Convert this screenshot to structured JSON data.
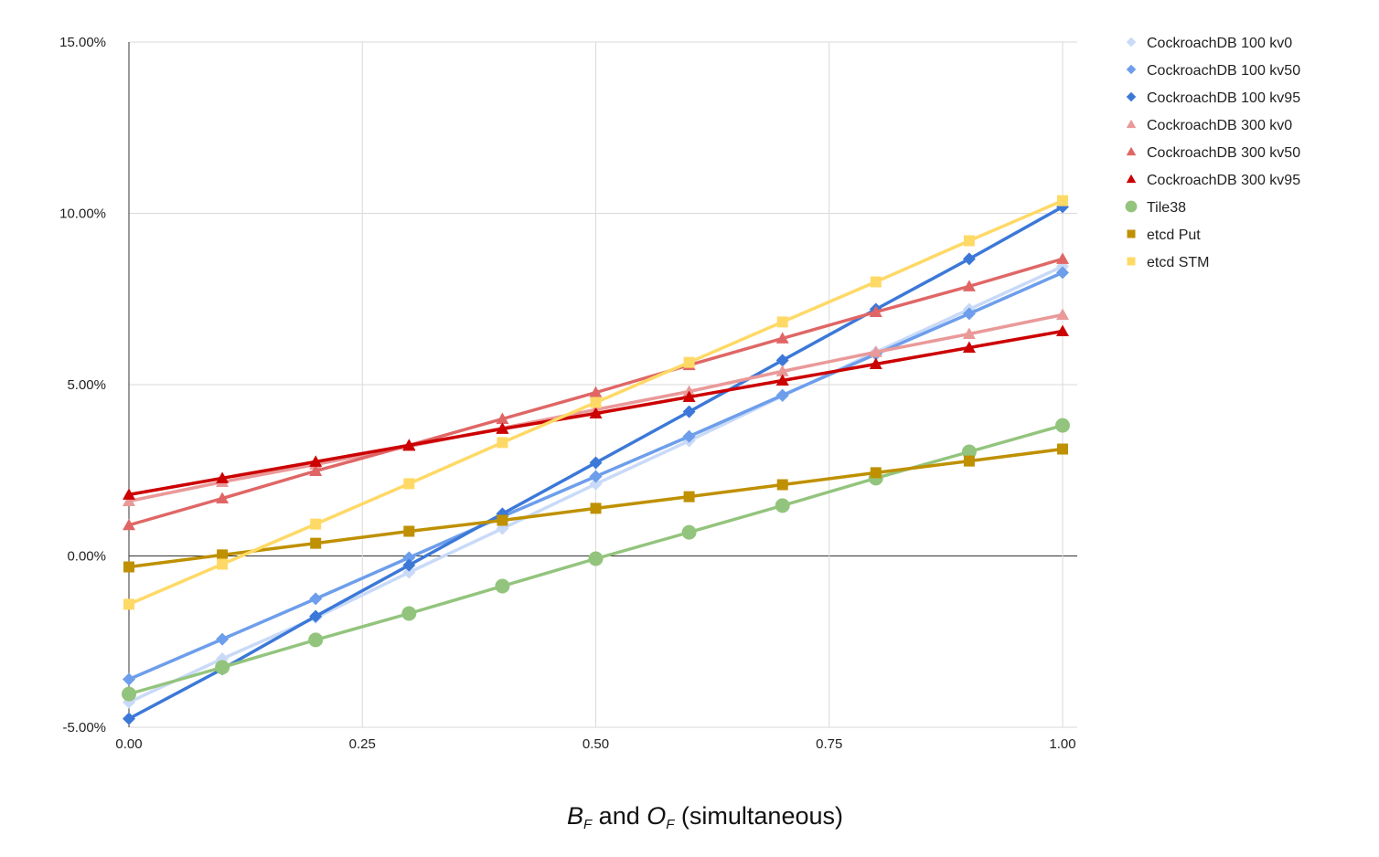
{
  "chart_data": {
    "type": "line",
    "title": "",
    "xlabel_parts": {
      "b": "B",
      "b_sub": "F",
      "mid": " and ",
      "o": "O",
      "o_sub": "F",
      "rest": " (simultaneous)"
    },
    "ylabel": "",
    "xlim": [
      0,
      1
    ],
    "ylim": [
      -5,
      15
    ],
    "x_ticks": [
      "0.00",
      "0.25",
      "0.50",
      "0.75",
      "1.00"
    ],
    "y_ticks": [
      "-5.00%",
      "0.00%",
      "5.00%",
      "10.00%",
      "15.00%"
    ],
    "grid": true,
    "legend": "right",
    "x": [
      0,
      0.1,
      0.2,
      0.3,
      0.4,
      0.5,
      0.6,
      0.7,
      0.8,
      0.9,
      1.0
    ],
    "series": [
      {
        "name": "CockroachDB 100 kv0",
        "color": "#c9daf8",
        "marker": "diamond",
        "values": [
          -4.27,
          -3.0,
          -1.8,
          -0.48,
          0.8,
          2.1,
          3.36,
          4.67,
          5.95,
          7.2,
          8.45
        ]
      },
      {
        "name": "CockroachDB 100 kv50",
        "color": "#6d9eeb",
        "marker": "diamond",
        "values": [
          -3.6,
          -2.43,
          -1.25,
          -0.05,
          1.15,
          2.32,
          3.49,
          4.69,
          5.89,
          7.07,
          8.27
        ]
      },
      {
        "name": "CockroachDB 100 kv95",
        "color": "#3c78d8",
        "marker": "diamond",
        "values": [
          -4.75,
          -3.3,
          -1.76,
          -0.27,
          1.23,
          2.72,
          4.21,
          5.71,
          7.2,
          8.67,
          10.19
        ]
      },
      {
        "name": "CockroachDB 300 kv0",
        "color": "#ea9999",
        "marker": "triangle",
        "values": [
          1.6,
          2.16,
          2.67,
          3.2,
          3.73,
          4.27,
          4.8,
          5.39,
          5.95,
          6.48,
          7.04
        ]
      },
      {
        "name": "CockroachDB 300 kv50",
        "color": "#e06666",
        "marker": "triangle",
        "values": [
          0.9,
          1.68,
          2.48,
          3.23,
          4.0,
          4.77,
          5.57,
          6.35,
          7.12,
          7.87,
          8.67
        ]
      },
      {
        "name": "CockroachDB 300 kv95",
        "color": "#cc0000",
        "marker": "triangle",
        "values": [
          1.79,
          2.27,
          2.75,
          3.23,
          3.71,
          4.16,
          4.64,
          5.12,
          5.6,
          6.08,
          6.56
        ]
      },
      {
        "name": "Tile38",
        "color": "#93c47d",
        "marker": "circle",
        "values": [
          -4.03,
          -3.25,
          -2.45,
          -1.68,
          -0.88,
          -0.08,
          0.69,
          1.47,
          2.27,
          3.04,
          3.81
        ]
      },
      {
        "name": "etcd Put",
        "color": "#bf9000",
        "marker": "square",
        "values": [
          -0.32,
          0.03,
          0.37,
          0.72,
          1.04,
          1.39,
          1.73,
          2.08,
          2.43,
          2.77,
          3.12
        ]
      },
      {
        "name": "etcd STM",
        "color": "#ffd966",
        "marker": "square",
        "values": [
          -1.41,
          -0.24,
          0.93,
          2.11,
          3.31,
          4.48,
          5.65,
          6.83,
          8.0,
          9.2,
          10.37
        ]
      }
    ]
  }
}
